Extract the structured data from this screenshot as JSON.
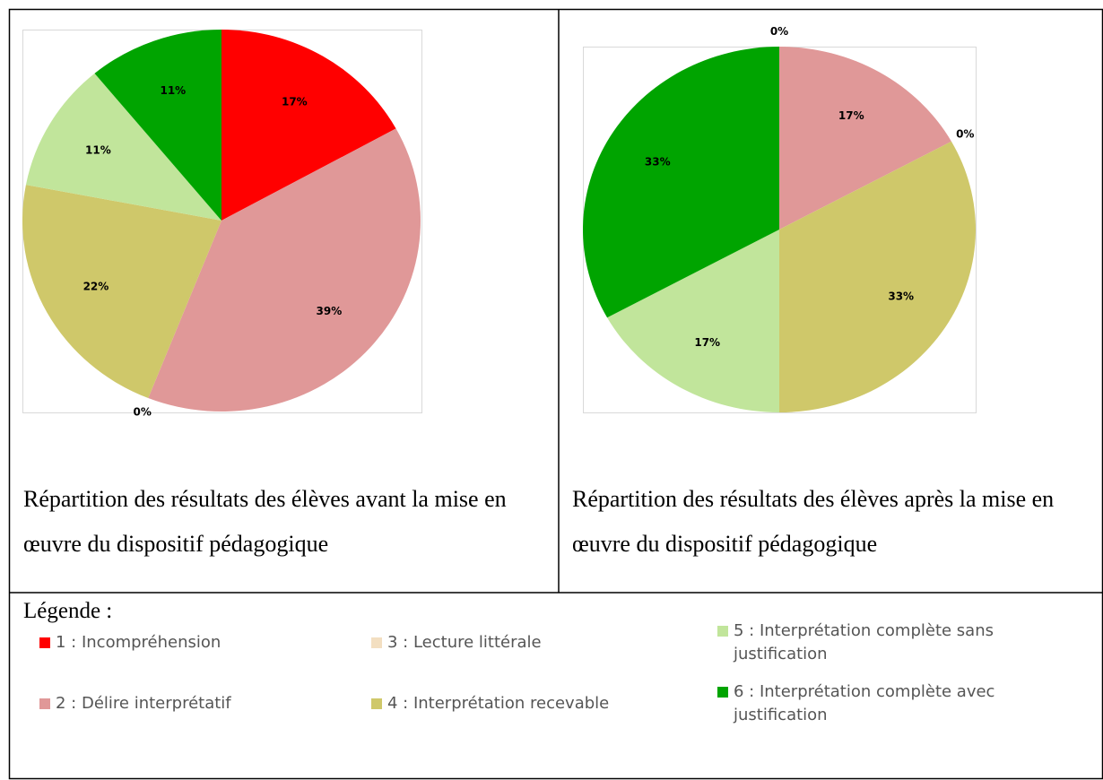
{
  "chart_data": [
    {
      "type": "pie",
      "values": [
        17,
        39,
        0,
        22,
        11,
        11
      ],
      "value_labels": [
        "17%",
        "39%",
        "0%",
        "22%",
        "11%",
        "11%"
      ],
      "caption": "Répartition des résultats des élèves avant la mise en œuvre du dispositif pédagogique"
    },
    {
      "type": "pie",
      "values": [
        0,
        17,
        0,
        33,
        17,
        33
      ],
      "value_labels": [
        "0%",
        "17%",
        "0%",
        "33%",
        "17%",
        "33%"
      ],
      "caption": "Répartition des résultats des élèves après la mise en œuvre du dispositif pédagogique"
    }
  ],
  "legend": {
    "title": "Légende :",
    "items": [
      {
        "name": "1 : Incompréhension",
        "color": "#ff0000"
      },
      {
        "name": "2 : Délire interprétatif",
        "color": "#e09898"
      },
      {
        "name": "3 : Lecture littérale",
        "color": "#f3dfc1"
      },
      {
        "name": "4 : Interprétation recevable",
        "color": "#cfc86a"
      },
      {
        "name": "5 : Interprétation complète sans justification",
        "color": "#c1e59b"
      },
      {
        "name": "6 : Interprétation complète avec justification",
        "color": "#00a400"
      }
    ]
  }
}
